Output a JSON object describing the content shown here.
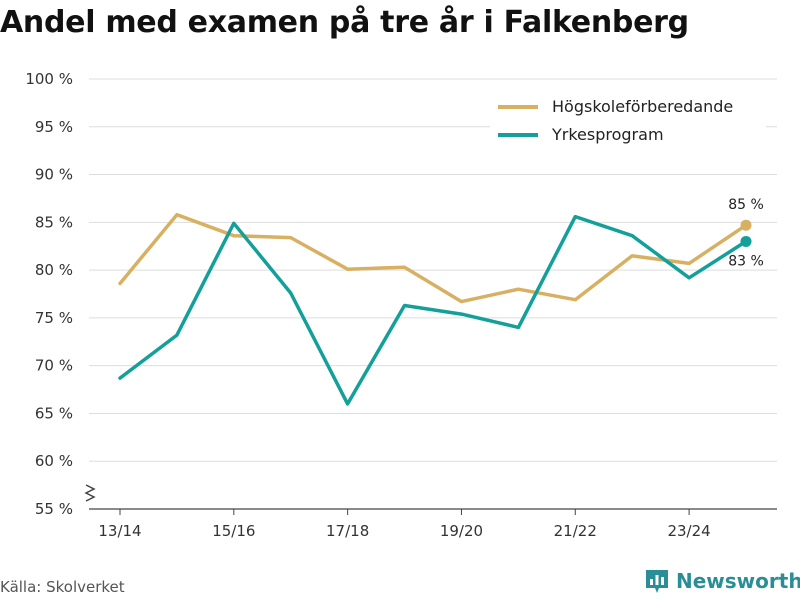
{
  "title": "Andel med examen på tre år i Falkenberg",
  "source": "Källa: Skolverket",
  "brand": "Newsworthy",
  "colors": {
    "series1": "#d8b062",
    "series2": "#14a09a",
    "grid": "#dddddd",
    "brand": "#2a8e96"
  },
  "chart_data": {
    "type": "line",
    "x": [
      "13/14",
      "14/15",
      "15/16",
      "16/17",
      "17/18",
      "18/19",
      "19/20",
      "20/21",
      "21/22",
      "22/23",
      "23/24",
      "24/25"
    ],
    "xticks": [
      "13/14",
      "15/16",
      "17/18",
      "19/20",
      "21/22",
      "23/24"
    ],
    "yticks": [
      "100 %",
      "95 %",
      "90 %",
      "85 %",
      "80 %",
      "75 %",
      "70 %",
      "65 %",
      "60 %",
      "55 %"
    ],
    "ylim": [
      55,
      100
    ],
    "series": [
      {
        "name": "Högskoleförberedande",
        "values": [
          78.6,
          85.8,
          83.6,
          83.4,
          80.1,
          80.3,
          76.7,
          78.0,
          76.9,
          81.5,
          80.7,
          84.7
        ],
        "end_label": "85 %"
      },
      {
        "name": "Yrkesprogram",
        "values": [
          68.7,
          73.2,
          84.9,
          77.6,
          66.0,
          76.3,
          75.4,
          74.0,
          85.6,
          83.6,
          79.2,
          83.0
        ],
        "end_label": "83 %"
      }
    ]
  }
}
